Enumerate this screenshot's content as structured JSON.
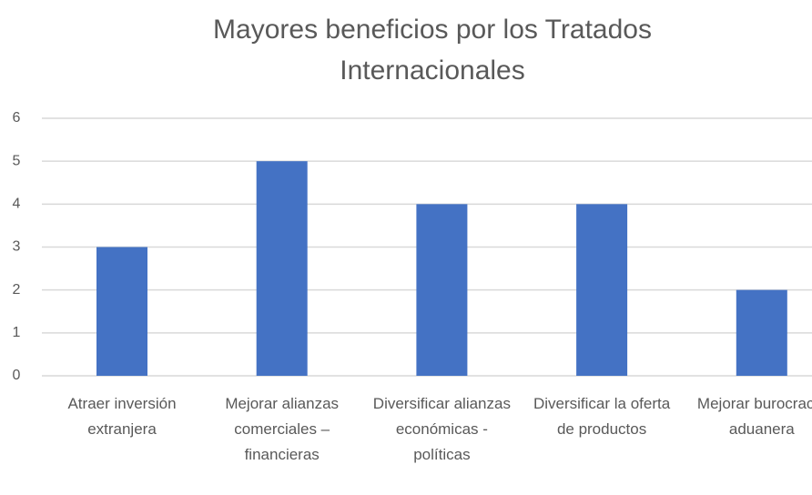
{
  "chart_data": {
    "type": "bar",
    "title": "Mayores beneficios por los Tratados Internacionales",
    "categories": [
      "Atraer inversión extranjera",
      "Mejorar alianzas comerciales – financieras",
      "Diversificar alianzas económicas - políticas",
      "Diversificar la oferta de productos",
      "Mejorar burocracia aduanera"
    ],
    "values": [
      3,
      5,
      4,
      4,
      2
    ],
    "color": "#4472c4",
    "ylim": [
      0,
      6
    ],
    "yticks": [
      0,
      1,
      2,
      3,
      4,
      5,
      6
    ],
    "grid": true
  }
}
